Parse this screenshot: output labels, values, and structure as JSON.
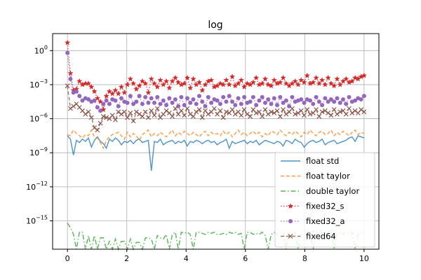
{
  "chart_data": {
    "type": "line",
    "title": "log",
    "xlabel": "",
    "ylabel": "",
    "xlim": [
      -0.5,
      10.5
    ],
    "ylim_log10": [
      -17.5,
      1.5
    ],
    "yscale": "log",
    "grid": true,
    "legend_position": "lower-right",
    "x_ticks": [
      0,
      2,
      4,
      6,
      8,
      10
    ],
    "x_tick_labels": [
      "0",
      "2",
      "4",
      "6",
      "8",
      "10"
    ],
    "y_ticks": [
      {
        "base": "10",
        "exp": "0",
        "value": 0
      },
      {
        "base": "10",
        "exp": "−3",
        "value": -3
      },
      {
        "base": "10",
        "exp": "−6",
        "value": -6
      },
      {
        "base": "10",
        "exp": "−9",
        "value": -9
      },
      {
        "base": "10",
        "exp": "−12",
        "value": -12
      },
      {
        "base": "10",
        "exp": "−15",
        "value": -15
      }
    ],
    "series": [
      {
        "name": "float std",
        "color": "#1f77b4",
        "style": "solid",
        "marker": "none",
        "log10_values": [
          -7.5,
          -7.8,
          -9.2,
          -7.9,
          -8.1,
          -7.8,
          -8.0,
          -7.7,
          -8.5,
          -7.9,
          -7.6,
          -8.0,
          -8.2,
          -8.6,
          -7.8,
          -8.0,
          -7.7,
          -7.9,
          -8.3,
          -8.0,
          -8.1,
          -7.9,
          -8.2,
          -7.9,
          -7.8,
          -8.1,
          -8.0,
          -7.9,
          -10.6,
          -8.0,
          -8.1,
          -7.8,
          -8.3,
          -8.1,
          -8.0,
          -7.9,
          -8.2,
          -8.0,
          -8.1,
          -7.9,
          -8.4,
          -8.0,
          -8.1,
          -7.9,
          -8.0,
          -8.2,
          -8.0,
          -7.9,
          -8.1,
          -8.0,
          -8.3,
          -8.1,
          -8.0,
          -7.8,
          -8.6,
          -8.0,
          -8.2,
          -8.1,
          -8.0,
          -7.9,
          -8.2,
          -8.0,
          -8.1,
          -7.9,
          -8.3,
          -8.1,
          -7.9,
          -8.0,
          -8.1,
          -8.2,
          -8.0,
          -8.1,
          -8.4,
          -7.9,
          -8.0,
          -8.2,
          -7.8,
          -8.0,
          -8.1,
          -8.5,
          -8.2,
          -8.0,
          -7.9,
          -8.1,
          -8.0,
          -7.8,
          -8.3,
          -8.1,
          -8.0,
          -7.9,
          -8.2,
          -8.1,
          -8.0,
          -7.9,
          -7.7,
          -7.6,
          -8.0,
          -7.5,
          -7.6,
          -7.7
        ]
      },
      {
        "name": "float taylor",
        "color": "#ff7f0e",
        "style": "dashed",
        "marker": "none",
        "log10_values": [
          -7.4,
          -7.5,
          -7.0,
          -7.3,
          -7.5,
          -7.7,
          -7.4,
          -7.5,
          -7.0,
          -7.6,
          -7.7,
          -8.1,
          -8.6,
          -7.9,
          -7.6,
          -7.4,
          -7.3,
          -7.2,
          -7.5,
          -7.8,
          -7.2,
          -7.6,
          -7.3,
          -7.5,
          -7.9,
          -7.4,
          -7.2,
          -7.0,
          -7.6,
          -7.3,
          -7.5,
          -7.2,
          -7.4,
          -7.6,
          -7.3,
          -7.0,
          -7.5,
          -7.2,
          -7.4,
          -7.1,
          -7.3,
          -7.5,
          -7.2,
          -7.4,
          -7.6,
          -7.3,
          -7.1,
          -7.5,
          -7.2,
          -7.4,
          -7.3,
          -7.5,
          -7.1,
          -7.4,
          -7.2,
          -7.6,
          -7.3,
          -7.0,
          -7.4,
          -7.2,
          -7.5,
          -7.3,
          -7.1,
          -7.4,
          -7.2,
          -7.6,
          -7.3,
          -7.5,
          -7.1,
          -7.2,
          -7.4,
          -7.0,
          -7.3,
          -7.5,
          -7.2,
          -7.4,
          -7.1,
          -7.3,
          -7.6,
          -7.2,
          -7.4,
          -7.0,
          -7.3,
          -7.5,
          -7.2,
          -7.1,
          -7.4,
          -7.3,
          -7.0,
          -7.5,
          -7.2,
          -7.4,
          -7.1,
          -7.3,
          -7.5,
          -7.2,
          -7.0,
          -7.4,
          -7.2,
          -7.3
        ]
      },
      {
        "name": "double taylor",
        "color": "#2ca02c",
        "style": "dashdot",
        "marker": "none",
        "log10_values": [
          -15.2,
          -15.6,
          -16.2,
          -17.5,
          -16.0,
          -16.0,
          -17.5,
          -16.3,
          -17.5,
          -16.3,
          -17.5,
          -16.5,
          -16.5,
          -17.5,
          -16.8,
          -17.5,
          -16.6,
          -17.5,
          -16.8,
          -16.8,
          -17.5,
          -16.6,
          -17.5,
          -16.9,
          -16.9,
          -17.5,
          -16.5,
          -16.5,
          -16.6,
          -17.5,
          -16.3,
          -16.5,
          -16.6,
          -16.2,
          -17.5,
          -16.2,
          -16.0,
          -17.5,
          -16.0,
          -16.1,
          -16.0,
          -16.2,
          -17.5,
          -16.0,
          -16.0,
          -16.1,
          -16.2,
          -16.0,
          -16.1,
          -16.0,
          -16.2,
          -16.2,
          -16.1,
          -16.2,
          -16.0,
          -16.1,
          -16.0,
          -16.2,
          -16.1,
          -17.5,
          -16.0,
          -16.0,
          -16.2,
          -16.1,
          -16.2,
          -16.0,
          -16.3,
          -17.5,
          -16.2,
          -16.0,
          -16.2,
          -16.1,
          -16.0,
          -17.5,
          -16.0,
          -16.2,
          -16.0,
          -17.5,
          -16.2,
          -16.1,
          -16.0,
          -16.0,
          -17.5,
          -16.2,
          -16.0,
          -16.1,
          -16.0,
          -16.2,
          -16.0,
          -17.5,
          -16.1,
          -16.0,
          -16.2,
          -16.0,
          -16.1,
          -16.0,
          -17.5,
          -16.2,
          -16.0,
          -16.1
        ]
      },
      {
        "name": "fixed32_s",
        "color": "#d62728",
        "style": "dotted",
        "marker": "star",
        "log10_values": [
          0.7,
          -2.0,
          -3.5,
          -3.4,
          -2.7,
          -3.0,
          -2.9,
          -2.9,
          -3.2,
          -3.6,
          -4.2,
          -4.5,
          -5.2,
          -4.0,
          -3.6,
          -3.8,
          -3.5,
          -3.8,
          -3.2,
          -3.7,
          -3.0,
          -2.5,
          -2.9,
          -3.4,
          -3.1,
          -2.7,
          -2.9,
          -3.7,
          -2.5,
          -2.9,
          -3.2,
          -2.6,
          -3.0,
          -2.7,
          -3.3,
          -2.7,
          -2.4,
          -2.8,
          -3.0,
          -2.9,
          -2.4,
          -3.3,
          -2.5,
          -3.0,
          -2.8,
          -3.5,
          -3.0,
          -2.7,
          -2.6,
          -3.2,
          -3.1,
          -2.9,
          -3.0,
          -2.6,
          -3.0,
          -2.3,
          -3.1,
          -2.9,
          -2.6,
          -3.2,
          -2.9,
          -3.0,
          -2.8,
          -2.4,
          -3.0,
          -2.9,
          -2.5,
          -3.0,
          -3.1,
          -2.6,
          -2.9,
          -2.8,
          -2.4,
          -2.9,
          -3.1,
          -2.9,
          -2.7,
          -3.0,
          -2.6,
          -2.8,
          -2.2,
          -2.9,
          -2.8,
          -2.4,
          -2.9,
          -2.6,
          -3.0,
          -2.4,
          -2.9,
          -3.1,
          -2.5,
          -3.0,
          -2.7,
          -2.5,
          -2.8,
          -2.7,
          -2.4,
          -2.5,
          -2.3,
          -2.2
        ]
      },
      {
        "name": "fixed32_a",
        "color": "#9467bd",
        "style": "dotted",
        "marker": "circle",
        "log10_values": [
          -0.2,
          -2.5,
          -3.7,
          -3.6,
          -4.0,
          -4.4,
          -4.2,
          -4.3,
          -4.5,
          -4.4,
          -5.0,
          -5.3,
          -4.7,
          -4.4,
          -4.7,
          -4.3,
          -4.4,
          -4.9,
          -4.2,
          -4.5,
          -4.6,
          -4.0,
          -4.7,
          -4.5,
          -4.0,
          -4.7,
          -4.1,
          -4.6,
          -4.2,
          -4.6,
          -4.1,
          -4.7,
          -4.4,
          -4.8,
          -4.2,
          -4.6,
          -4.3,
          -4.9,
          -4.1,
          -4.8,
          -4.2,
          -4.6,
          -4.3,
          -4.7,
          -4.0,
          -4.5,
          -4.9,
          -4.1,
          -4.6,
          -4.3,
          -4.4,
          -4.7,
          -4.1,
          -4.5,
          -4.0,
          -4.5,
          -4.8,
          -4.2,
          -4.7,
          -4.1,
          -4.6,
          -4.5,
          -4.1,
          -4.8,
          -4.4,
          -4.1,
          -4.6,
          -4.3,
          -4.7,
          -4.2,
          -4.8,
          -4.1,
          -4.6,
          -4.4,
          -4.9,
          -4.1,
          -4.5,
          -4.4,
          -4.3,
          -4.6,
          -4.3,
          -4.4,
          -4.7,
          -4.1,
          -4.5,
          -4.8,
          -4.2,
          -4.5,
          -4.3,
          -4.5,
          -4.2,
          -4.6,
          -4.3,
          -4.7,
          -4.1,
          -4.5,
          -4.4,
          -4.2,
          -4.3,
          -4.0
        ]
      },
      {
        "name": "fixed64",
        "color": "#8c564b",
        "style": "dashed",
        "marker": "x",
        "log10_values": [
          -3.1,
          -5.1,
          -4.9,
          -4.7,
          -5.0,
          -5.3,
          -5.6,
          -5.4,
          -5.9,
          -6.8,
          -7.0,
          -6.4,
          -5.8,
          -5.9,
          -6.0,
          -5.7,
          -6.1,
          -5.4,
          -5.6,
          -5.4,
          -5.9,
          -5.5,
          -6.2,
          -5.4,
          -5.6,
          -5.8,
          -5.4,
          -5.9,
          -5.3,
          -5.7,
          -5.1,
          -5.9,
          -5.6,
          -5.3,
          -5.5,
          -5.8,
          -5.1,
          -5.6,
          -5.3,
          -5.7,
          -5.1,
          -5.6,
          -5.8,
          -5.4,
          -5.2,
          -5.9,
          -5.3,
          -5.6,
          -5.4,
          -5.1,
          -5.6,
          -5.3,
          -5.9,
          -5.4,
          -5.5,
          -5.2,
          -5.6,
          -5.4,
          -5.7,
          -5.2,
          -5.6,
          -5.8,
          -5.2,
          -5.5,
          -5.4,
          -5.8,
          -5.2,
          -5.6,
          -5.4,
          -5.5,
          -5.3,
          -5.8,
          -5.2,
          -5.6,
          -5.4,
          -5.1,
          -5.6,
          -5.5,
          -5.3,
          -5.7,
          -5.2,
          -5.6,
          -5.5,
          -5.2,
          -5.8,
          -5.4,
          -5.3,
          -5.5,
          -5.7,
          -5.2,
          -5.6,
          -5.4,
          -5.3,
          -5.6,
          -5.1,
          -5.5,
          -5.3,
          -5.5,
          -5.2,
          -5.4
        ]
      }
    ]
  }
}
